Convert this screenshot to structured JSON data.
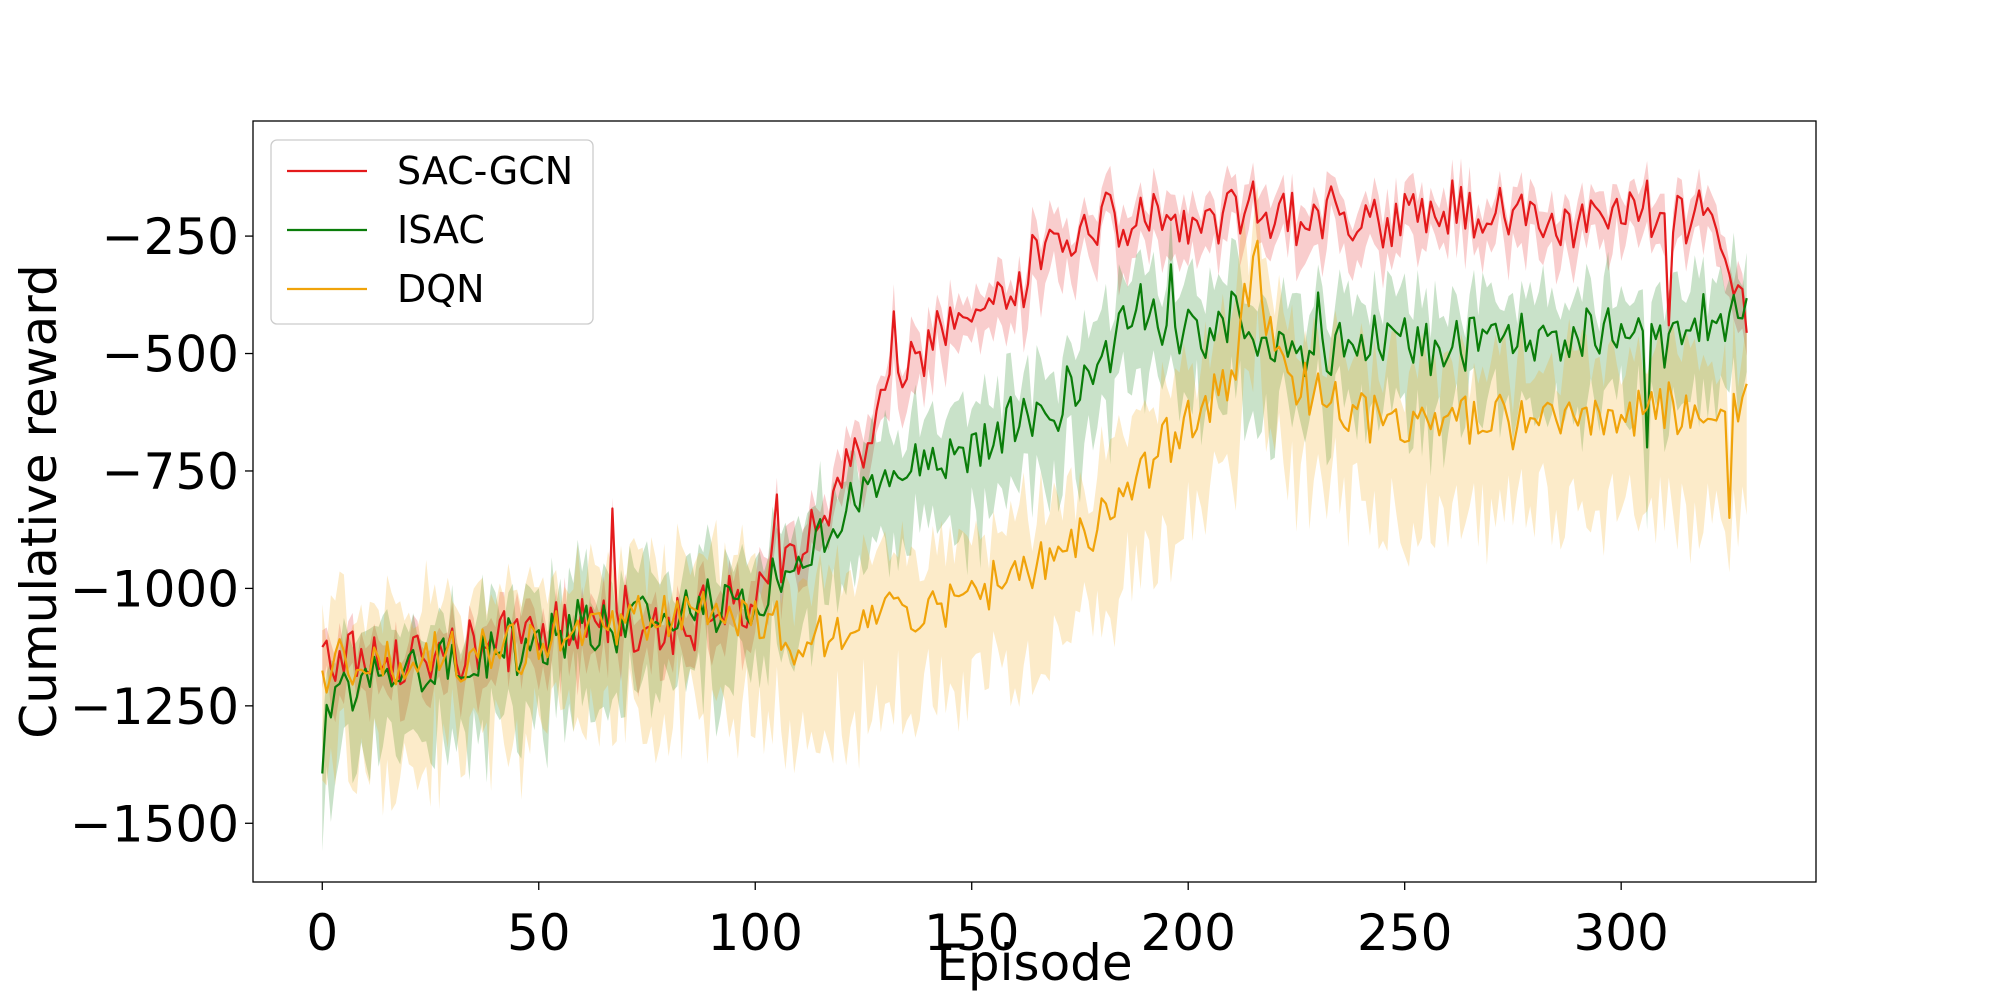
{
  "chart_data": {
    "type": "line",
    "title": "",
    "xlabel": "Episode",
    "ylabel": "Cumulative reward",
    "xlim": [
      -16,
      345
    ],
    "ylim": [
      -1625,
      -5
    ],
    "xticks": [
      0,
      50,
      100,
      150,
      200,
      250,
      300
    ],
    "yticks": [
      -250,
      -500,
      -750,
      -1000,
      -1250,
      -1500
    ],
    "ytick_labels": [
      "−250",
      "−500",
      "−750",
      "−1000",
      "−1250",
      "−1500"
    ],
    "grid": false,
    "legend": {
      "position": "top-left",
      "entries": [
        "SAC-GCN",
        "ISAC",
        "DQN"
      ]
    },
    "episodes": 330,
    "band": "shaded region around each line",
    "series": [
      {
        "name": "SAC-GCN",
        "color": "#e41a1c",
        "anchors": [
          [
            0,
            -1140
          ],
          [
            20,
            -1150
          ],
          [
            40,
            -1130
          ],
          [
            60,
            -1070
          ],
          [
            80,
            -1070
          ],
          [
            100,
            -1030
          ],
          [
            110,
            -900
          ],
          [
            120,
            -780
          ],
          [
            130,
            -600
          ],
          [
            140,
            -470
          ],
          [
            150,
            -430
          ],
          [
            160,
            -360
          ],
          [
            170,
            -250
          ],
          [
            180,
            -220
          ],
          [
            190,
            -215
          ],
          [
            200,
            -205
          ],
          [
            220,
            -200
          ],
          [
            240,
            -215
          ],
          [
            260,
            -200
          ],
          [
            280,
            -205
          ],
          [
            300,
            -200
          ],
          [
            320,
            -205
          ],
          [
            328,
            -380
          ]
        ],
        "noise": 60,
        "band_width": 70,
        "markers": [
          [
            67,
            -830
          ],
          [
            105,
            -800
          ],
          [
            132,
            -410
          ],
          [
            218,
            -200
          ],
          [
            222,
            -160
          ],
          [
            311,
            -440
          ]
        ]
      },
      {
        "name": "ISAC",
        "color": "#0a7d0a",
        "anchors": [
          [
            0,
            -1360
          ],
          [
            3,
            -1200
          ],
          [
            20,
            -1170
          ],
          [
            40,
            -1140
          ],
          [
            60,
            -1080
          ],
          [
            80,
            -1060
          ],
          [
            100,
            -1020
          ],
          [
            110,
            -940
          ],
          [
            120,
            -850
          ],
          [
            130,
            -780
          ],
          [
            140,
            -730
          ],
          [
            150,
            -700
          ],
          [
            160,
            -650
          ],
          [
            170,
            -600
          ],
          [
            180,
            -520
          ],
          [
            190,
            -400
          ],
          [
            200,
            -470
          ],
          [
            210,
            -420
          ],
          [
            220,
            -480
          ],
          [
            230,
            -520
          ],
          [
            240,
            -470
          ],
          [
            260,
            -480
          ],
          [
            280,
            -470
          ],
          [
            300,
            -460
          ],
          [
            320,
            -420
          ],
          [
            328,
            -420
          ]
        ],
        "noise": 55,
        "band_width": 150,
        "markers": [
          [
            196,
            -310
          ],
          [
            230,
            -370
          ],
          [
            306,
            -700
          ],
          [
            310,
            -530
          ]
        ]
      },
      {
        "name": "DQN",
        "color": "#f0a30a",
        "anchors": [
          [
            0,
            -1170
          ],
          [
            20,
            -1160
          ],
          [
            40,
            -1130
          ],
          [
            60,
            -1090
          ],
          [
            80,
            -1070
          ],
          [
            100,
            -1080
          ],
          [
            110,
            -1100
          ],
          [
            120,
            -1080
          ],
          [
            130,
            -1030
          ],
          [
            140,
            -1050
          ],
          [
            150,
            -1040
          ],
          [
            160,
            -980
          ],
          [
            170,
            -920
          ],
          [
            180,
            -840
          ],
          [
            190,
            -760
          ],
          [
            200,
            -640
          ],
          [
            210,
            -560
          ],
          [
            215,
            -300
          ],
          [
            220,
            -520
          ],
          [
            230,
            -600
          ],
          [
            240,
            -620
          ],
          [
            260,
            -650
          ],
          [
            280,
            -640
          ],
          [
            300,
            -620
          ],
          [
            320,
            -600
          ],
          [
            328,
            -600
          ]
        ],
        "noise": 55,
        "band_width": 200,
        "markers": [
          [
            216,
            -260
          ],
          [
            325,
            -850
          ]
        ]
      }
    ]
  }
}
